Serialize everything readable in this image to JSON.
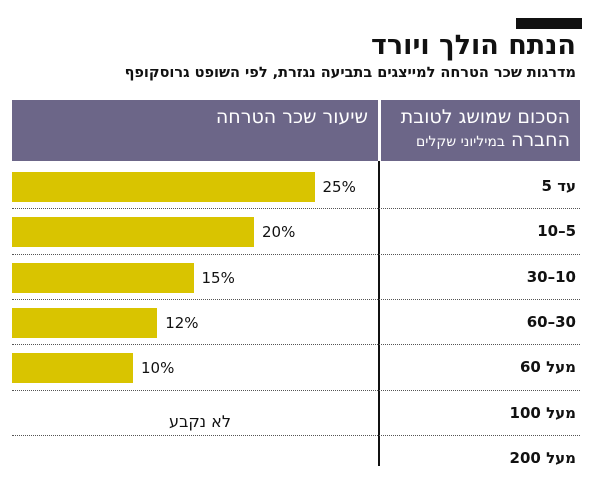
{
  "title": "הנתח הולך ויורד",
  "subtitle": "מדרגות שכר הטרחה למייצגים בתביעה נגזרת, לפי השופט גרוסקופף",
  "header": {
    "amount_line1": "הסכום שמושג לטובת",
    "amount_line2": "החברה",
    "amount_unit": "במיליוני שקלים",
    "fee_rate": "שיעור שכר הטרחה"
  },
  "no_data_label": "לא נקבע",
  "colors": {
    "bar": "#d9c400",
    "header": "#6c6688"
  },
  "chart_data": {
    "type": "bar",
    "orientation": "horizontal",
    "categories": [
      "עד 5",
      "5–10",
      "10–30",
      "30–60",
      "מעל 60",
      "מעל 100",
      "מעל 200"
    ],
    "values": [
      25,
      20,
      15,
      12,
      10,
      null,
      null
    ],
    "value_labels": [
      "25%",
      "20%",
      "15%",
      "12%",
      "10%",
      "",
      ""
    ],
    "unit": "%",
    "xlim": [
      0,
      100
    ]
  }
}
